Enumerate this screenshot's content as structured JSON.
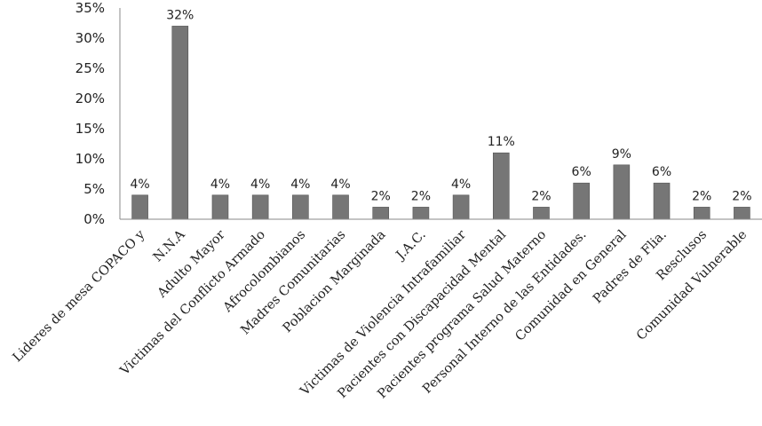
{
  "chart_data": {
    "type": "bar",
    "categories": [
      "Lideres de mesa COPACO y",
      "N.N.A",
      "Adulto Mayor",
      "Victimas del Conflicto Armado",
      "Afrocolombianos",
      "Madres Comunitarias",
      "Poblacion Marginada",
      "J.A.C.",
      "Victimas de Violencia Intrafamiliar",
      "Pacientes con Discapacidad Mental",
      "Pacientes programa Salud Materno",
      "Personal Interno de las Entidades.",
      "Comunidad en General",
      "Padres de Flia.",
      "Resclusos",
      "Comunidad Vulnerable"
    ],
    "values": [
      4,
      32,
      4,
      4,
      4,
      4,
      2,
      2,
      4,
      11,
      2,
      6,
      9,
      6,
      2,
      2
    ],
    "data_labels": [
      "4%",
      "32%",
      "4%",
      "4%",
      "4%",
      "4%",
      "2%",
      "2%",
      "4%",
      "11%",
      "2%",
      "6%",
      "9%",
      "6%",
      "2%",
      "2%"
    ],
    "y_ticks": [
      "0%",
      "5%",
      "10%",
      "15%",
      "20%",
      "25%",
      "30%",
      "35%"
    ],
    "ylim": [
      0,
      35
    ],
    "title": "",
    "xlabel": "",
    "ylabel": "",
    "grid": false,
    "legend": "none",
    "colors": {
      "bar": "#767676",
      "axis": "#8a8a8a"
    }
  }
}
